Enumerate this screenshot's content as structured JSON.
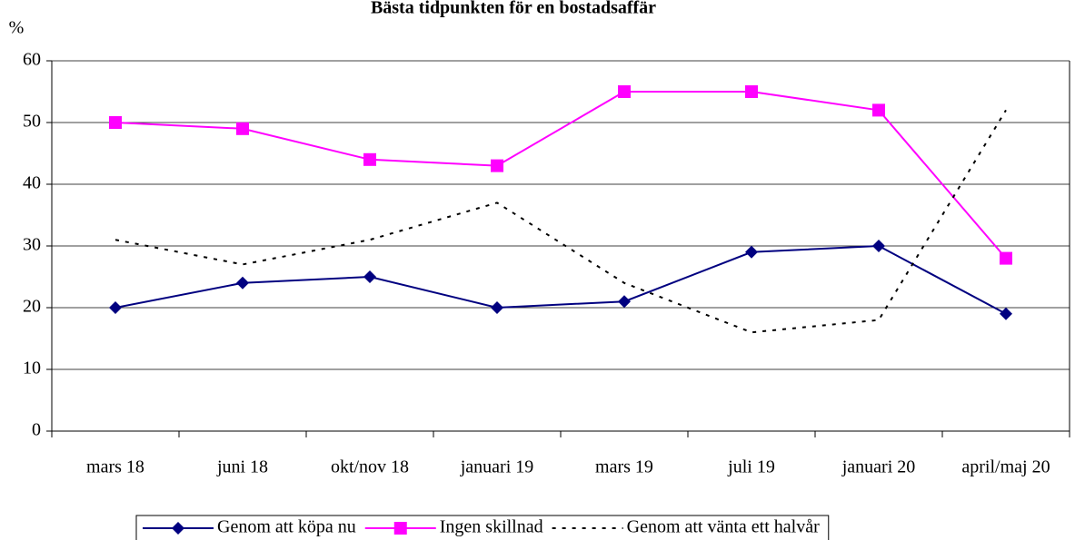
{
  "chart_data": {
    "type": "line",
    "title": "Bästa tidpunkten för en bostadsaffär",
    "y_label": "%",
    "categories": [
      "mars 18",
      "juni 18",
      "okt/nov 18",
      "januari 19",
      "mars 19",
      "juli 19",
      "januari 20",
      "april/maj 20"
    ],
    "series": [
      {
        "name": "Genom att köpa nu",
        "color": "#000080",
        "marker": "diamond",
        "dash": "solid",
        "values": [
          20,
          24,
          25,
          20,
          21,
          29,
          30,
          19
        ]
      },
      {
        "name": "Ingen skillnad",
        "color": "#ff00ff",
        "marker": "square",
        "dash": "solid",
        "values": [
          50,
          49,
          44,
          43,
          55,
          55,
          52,
          28
        ]
      },
      {
        "name": "Genom att vänta ett halvår",
        "color": "#000000",
        "marker": "none",
        "dash": "dotted",
        "values": [
          31,
          27,
          31,
          37,
          24,
          16,
          18,
          52
        ]
      }
    ],
    "ylim": [
      0,
      60
    ],
    "yticks": [
      0,
      10,
      20,
      30,
      40,
      50,
      60
    ],
    "grid": true,
    "legend": "bottom"
  }
}
